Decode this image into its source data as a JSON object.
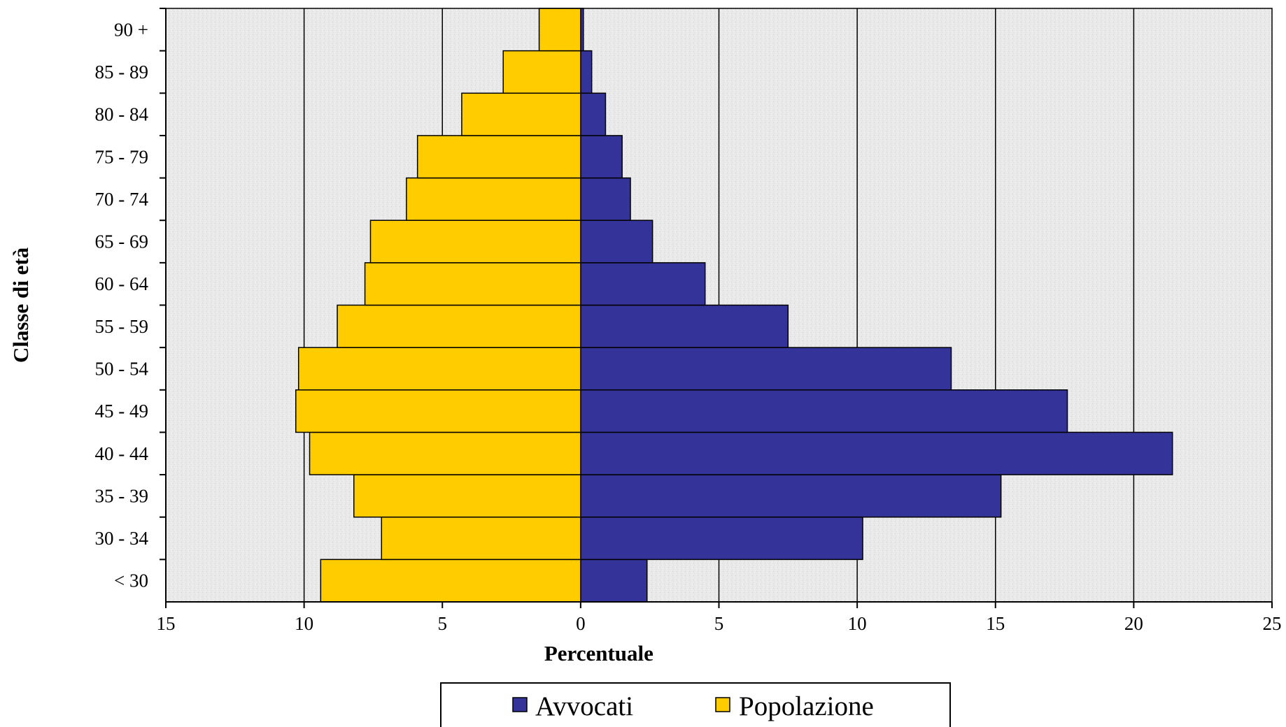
{
  "chart_data": {
    "type": "bar",
    "orientation": "horizontal",
    "layout": "population-pyramid",
    "categories": [
      "< 30",
      "30 - 34",
      "35 - 39",
      "40 - 44",
      "45 - 49",
      "50 - 54",
      "55 - 59",
      "60 - 64",
      "65 - 69",
      "70 - 74",
      "75 - 79",
      "80 - 84",
      "85 - 89",
      "90 +"
    ],
    "series": [
      {
        "name": "Avvocati",
        "color": "#333399",
        "side": "right",
        "values": [
          2.4,
          10.2,
          15.2,
          21.4,
          17.6,
          13.4,
          7.5,
          4.5,
          2.6,
          1.8,
          1.5,
          0.9,
          0.4,
          0.1
        ]
      },
      {
        "name": "Popolazione",
        "color": "#FFCC00",
        "side": "left",
        "values": [
          9.4,
          7.2,
          8.2,
          9.8,
          10.3,
          10.2,
          8.8,
          7.8,
          7.6,
          6.3,
          5.9,
          4.3,
          2.8,
          1.5
        ]
      }
    ],
    "xlabel": "Percentuale",
    "ylabel": "Classe di età",
    "xlim": [
      -15,
      25
    ],
    "xtick_values": [
      -15,
      -10,
      -5,
      0,
      5,
      10,
      15,
      20,
      25
    ],
    "xtick_labels": [
      "15",
      "10",
      "5",
      "0",
      "5",
      "10",
      "15",
      "20",
      "25"
    ],
    "grid": "vertical",
    "legend": "bottom-center"
  }
}
